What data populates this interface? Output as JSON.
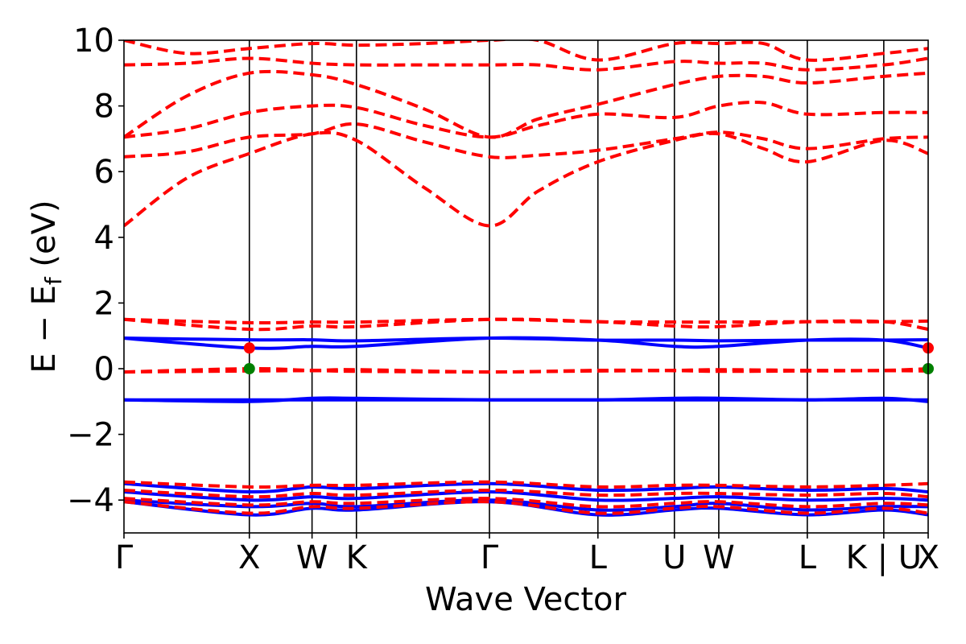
{
  "chart_data": {
    "type": "line",
    "title": "",
    "xlabel": "Wave Vector",
    "ylabel_parts": {
      "main": "E − E",
      "sub": "f",
      "unit": " (eV)"
    },
    "ylim": [
      -5,
      10
    ],
    "yticks": [
      -4,
      -2,
      0,
      2,
      4,
      6,
      8,
      10
    ],
    "ytick_labels": [
      "−4",
      "−2",
      "0",
      "2",
      "4",
      "6",
      "8",
      "10"
    ],
    "kpath": {
      "positions": [
        0,
        1,
        1.5,
        1.854,
        2.915,
        3.78,
        4.39,
        4.744,
        5.45,
        6.06,
        6.414
      ],
      "labels": [
        "Γ",
        "X",
        "W",
        "K",
        "Γ",
        "L",
        "U",
        "W",
        "L",
        "K | U",
        "X"
      ]
    },
    "series": [
      {
        "color": "#0000ff",
        "style": "solid",
        "bands": [
          {
            "k": [
              0,
              1,
              1.5,
              1.854,
              2.915,
              3.78,
              4.39,
              4.744,
              5.45,
              6.06,
              6.414
            ],
            "e": [
              -4.05,
              -4.45,
              -4.25,
              -4.3,
              -4.05,
              -4.45,
              -4.3,
              -4.25,
              -4.45,
              -4.3,
              -4.45
            ]
          },
          {
            "k": [
              0,
              1,
              1.5,
              1.854,
              2.915,
              3.78,
              4.39,
              4.744,
              5.45,
              6.06,
              6.414
            ],
            "e": [
              -4.0,
              -4.2,
              -4.1,
              -4.2,
              -4.0,
              -4.3,
              -4.2,
              -4.1,
              -4.3,
              -4.2,
              -4.2
            ]
          },
          {
            "k": [
              0,
              1,
              1.5,
              1.854,
              2.915,
              3.78,
              4.39,
              4.744,
              5.45,
              6.06,
              6.414
            ],
            "e": [
              -3.75,
              -4.0,
              -3.9,
              -3.95,
              -3.75,
              -4.0,
              -3.95,
              -3.9,
              -4.0,
              -3.95,
              -4.0
            ]
          },
          {
            "k": [
              0,
              1,
              1.5,
              1.854,
              2.915,
              3.78,
              4.39,
              4.744,
              5.45,
              6.06,
              6.414
            ],
            "e": [
              -3.5,
              -3.75,
              -3.6,
              -3.65,
              -3.5,
              -3.7,
              -3.65,
              -3.6,
              -3.7,
              -3.65,
              -3.75
            ]
          },
          {
            "k": [
              0,
              1,
              1.5,
              1.854,
              2.915,
              3.78,
              4.39,
              4.744,
              5.45,
              6.06,
              6.414
            ],
            "e": [
              -0.95,
              -1.0,
              -0.9,
              -0.9,
              -0.95,
              -0.95,
              -0.9,
              -0.9,
              -0.95,
              -0.9,
              -1.0
            ]
          },
          {
            "k": [
              0,
              1,
              1.5,
              1.854,
              2.915,
              3.78,
              4.39,
              4.744,
              5.45,
              6.06,
              6.414
            ],
            "e": [
              -0.95,
              -0.95,
              -0.95,
              -0.95,
              -0.95,
              -0.95,
              -0.95,
              -0.95,
              -0.95,
              -0.95,
              -0.95
            ]
          },
          {
            "k": [
              0,
              1,
              1.5,
              1.854,
              2.915,
              3.78,
              4.39,
              4.744,
              5.45,
              6.06,
              6.414
            ],
            "e": [
              0.93,
              0.63,
              0.68,
              0.68,
              0.93,
              0.87,
              0.68,
              0.68,
              0.87,
              0.87,
              0.63
            ]
          },
          {
            "k": [
              0,
              1,
              1.5,
              1.854,
              2.915,
              3.78,
              4.39,
              4.744,
              5.45,
              6.06,
              6.414
            ],
            "e": [
              0.93,
              0.88,
              0.88,
              0.85,
              0.93,
              0.87,
              0.87,
              0.85,
              0.87,
              0.87,
              0.88
            ]
          }
        ]
      },
      {
        "color": "#ff0000",
        "style": "dashed",
        "bands": [
          {
            "k": [
              0,
              1,
              1.5,
              1.854,
              2.915,
              3.78,
              4.39,
              4.744,
              5.45,
              6.06,
              6.414
            ],
            "e": [
              -0.1,
              0.0,
              -0.05,
              -0.03,
              -0.1,
              -0.05,
              -0.05,
              -0.03,
              -0.05,
              -0.05,
              0.0
            ]
          },
          {
            "k": [
              0,
              1,
              1.5,
              1.854,
              2.915,
              3.78,
              4.39,
              4.744,
              5.45,
              6.06,
              6.414
            ],
            "e": [
              -0.1,
              -0.07,
              -0.06,
              -0.08,
              -0.1,
              -0.07,
              -0.06,
              -0.08,
              -0.07,
              -0.06,
              -0.07
            ]
          },
          {
            "k": [
              0,
              1,
              1.5,
              1.854,
              2.915,
              3.78,
              4.39,
              4.744,
              5.45,
              6.06,
              6.414
            ],
            "e": [
              1.5,
              1.2,
              1.3,
              1.28,
              1.5,
              1.43,
              1.3,
              1.28,
              1.43,
              1.43,
              1.2
            ]
          },
          {
            "k": [
              0,
              1,
              1.5,
              1.854,
              2.915,
              3.78,
              4.39,
              4.744,
              5.45,
              6.06,
              6.414
            ],
            "e": [
              1.5,
              1.4,
              1.42,
              1.42,
              1.5,
              1.43,
              1.42,
              1.42,
              1.43,
              1.43,
              1.45
            ]
          },
          {
            "k": [
              0,
              1,
              1.5,
              1.854,
              2.915,
              3.78,
              4.39,
              4.744,
              5.45,
              6.06,
              6.414
            ],
            "e": [
              -4.05,
              -4.4,
              -4.2,
              -4.25,
              -4.05,
              -4.4,
              -4.25,
              -4.2,
              -4.4,
              -4.25,
              -4.4
            ]
          },
          {
            "k": [
              0,
              1,
              1.5,
              1.854,
              2.915,
              3.78,
              4.39,
              4.744,
              5.45,
              6.06,
              6.414
            ],
            "e": [
              -3.95,
              -4.15,
              -4.05,
              -4.1,
              -3.95,
              -4.2,
              -4.1,
              -4.05,
              -4.2,
              -4.1,
              -4.15
            ]
          },
          {
            "k": [
              0,
              1,
              1.5,
              1.854,
              2.915,
              3.78,
              4.39,
              4.744,
              5.45,
              6.06,
              6.414
            ],
            "e": [
              -3.7,
              -3.9,
              -3.8,
              -3.85,
              -3.7,
              -3.85,
              -3.8,
              -3.8,
              -3.85,
              -3.8,
              -3.9
            ]
          },
          {
            "k": [
              0,
              1,
              1.5,
              1.854,
              2.915,
              3.78,
              4.39,
              4.744,
              5.45,
              6.06,
              6.414
            ],
            "e": [
              -3.45,
              -3.6,
              -3.55,
              -3.55,
              -3.45,
              -3.6,
              -3.55,
              -3.55,
              -3.6,
              -3.55,
              -3.5
            ]
          },
          {
            "k": [
              0,
              0.5,
              1,
              1.5,
              1.854,
              2.4,
              2.915,
              3.3,
              3.78,
              4.39,
              4.744,
              5.1,
              5.45,
              6.06,
              6.414
            ],
            "e": [
              4.35,
              5.8,
              6.55,
              7.15,
              6.95,
              5.5,
              4.35,
              5.4,
              6.3,
              6.95,
              7.15,
              6.7,
              6.3,
              6.95,
              6.55
            ]
          },
          {
            "k": [
              0,
              0.5,
              1,
              1.5,
              1.854,
              2.4,
              2.915,
              3.3,
              3.78,
              4.39,
              4.744,
              5.1,
              5.45,
              6.06,
              6.414
            ],
            "e": [
              6.45,
              6.6,
              7.05,
              7.15,
              7.45,
              6.9,
              6.45,
              6.5,
              6.65,
              7.0,
              7.2,
              7.0,
              6.7,
              7.0,
              7.05
            ]
          },
          {
            "k": [
              0,
              0.5,
              1,
              1.5,
              1.854,
              2.4,
              2.915,
              3.3,
              3.78,
              4.39,
              4.744,
              5.1,
              5.45,
              6.06,
              6.414
            ],
            "e": [
              7.05,
              7.3,
              7.8,
              8.0,
              7.95,
              7.4,
              7.05,
              7.4,
              7.75,
              7.65,
              8.0,
              8.1,
              7.75,
              7.8,
              7.8
            ]
          },
          {
            "k": [
              0,
              0.5,
              1,
              1.5,
              1.854,
              2.4,
              2.915,
              3.3,
              3.78,
              4.39,
              4.744,
              5.1,
              5.45,
              6.06,
              6.414
            ],
            "e": [
              7.05,
              8.3,
              9.0,
              8.95,
              8.65,
              7.9,
              7.05,
              7.6,
              8.05,
              8.65,
              8.9,
              8.9,
              8.7,
              8.9,
              9.0
            ]
          },
          {
            "k": [
              0,
              0.5,
              1,
              1.5,
              1.854,
              2.4,
              2.915,
              3.3,
              3.78,
              4.39,
              4.744,
              5.1,
              5.45,
              6.06,
              6.414
            ],
            "e": [
              9.25,
              9.3,
              9.45,
              9.3,
              9.25,
              9.25,
              9.25,
              9.25,
              9.1,
              9.35,
              9.3,
              9.3,
              9.1,
              9.25,
              9.45
            ]
          },
          {
            "k": [
              0,
              0.5,
              1,
              1.5,
              1.854,
              2.4,
              2.915,
              3.3,
              3.78,
              4.39,
              4.744,
              5.1,
              5.45,
              6.06,
              6.414
            ],
            "e": [
              10.0,
              9.6,
              9.75,
              9.9,
              9.85,
              9.9,
              10.0,
              10.0,
              9.4,
              9.9,
              9.9,
              9.9,
              9.4,
              9.6,
              9.75
            ]
          }
        ]
      }
    ],
    "markers": [
      {
        "k": 1,
        "e": 0.63,
        "color": "#ff0000"
      },
      {
        "k": 1,
        "e": 0.0,
        "color": "#008000"
      },
      {
        "k": 6.414,
        "e": 0.63,
        "color": "#ff0000"
      },
      {
        "k": 6.414,
        "e": 0.0,
        "color": "#008000"
      }
    ]
  }
}
